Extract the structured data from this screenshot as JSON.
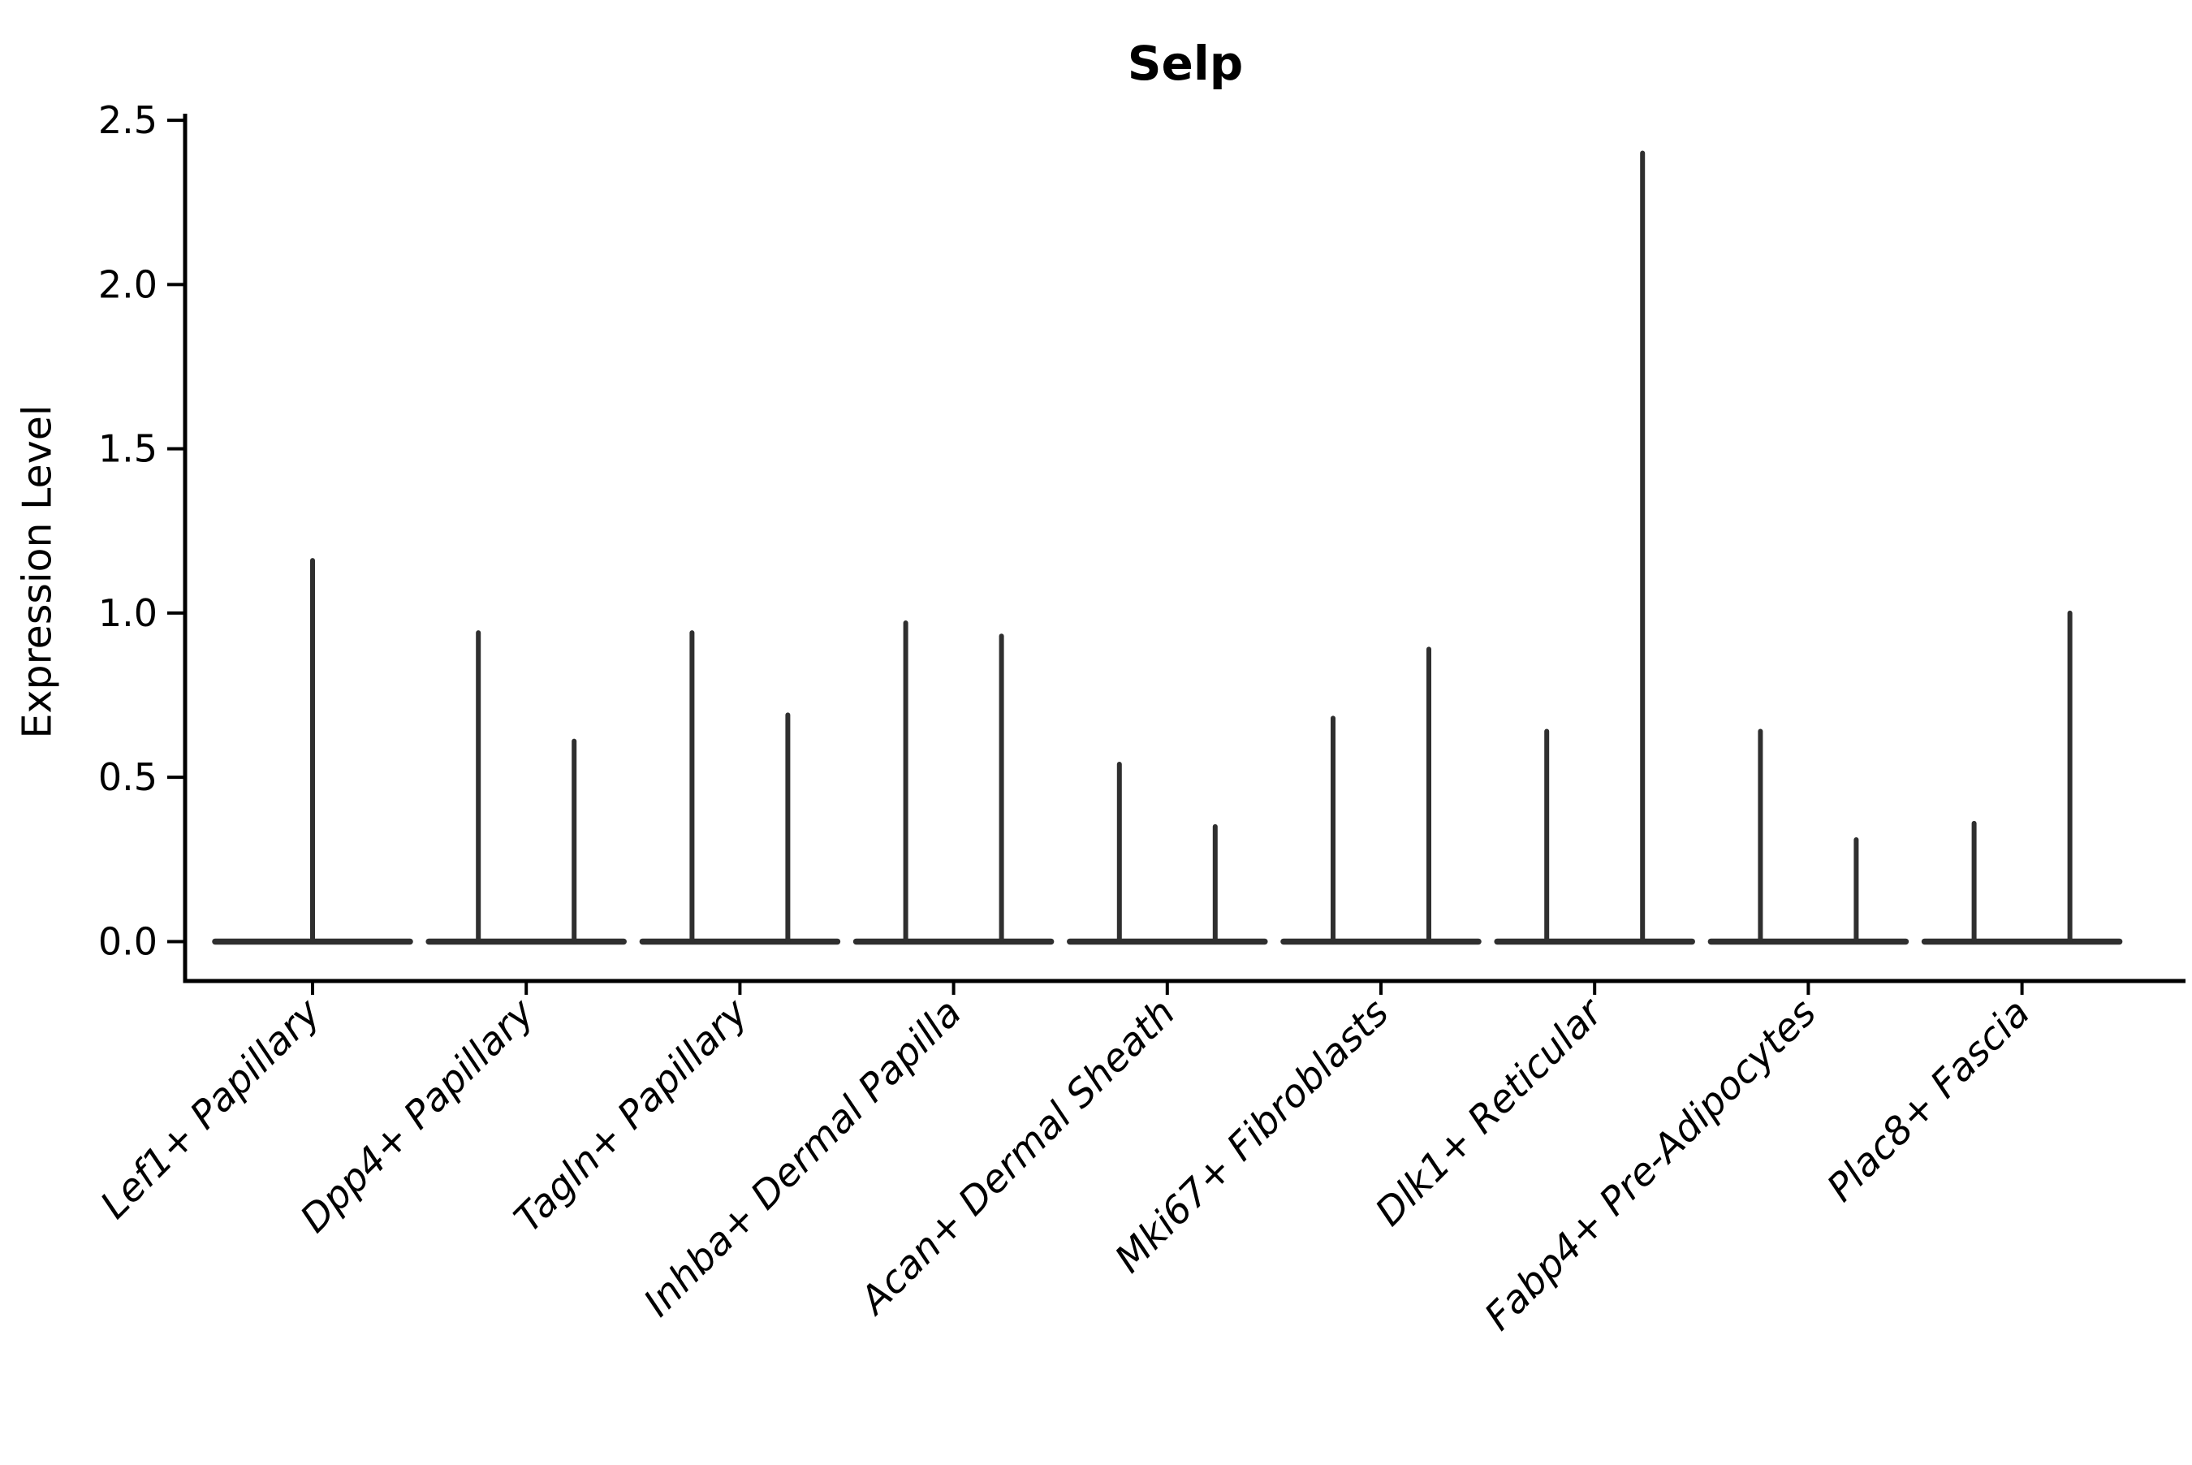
{
  "chart_data": {
    "type": "violin",
    "title": "Selp",
    "xlabel": "",
    "ylabel": "Expression Level",
    "ylim": [
      -0.12,
      2.52
    ],
    "yticks": [
      0.0,
      0.5,
      1.0,
      1.5,
      2.0,
      2.5
    ],
    "ytick_labels": [
      "0.0",
      "0.5",
      "1.0",
      "1.5",
      "2.0",
      "2.5"
    ],
    "x_tick_rotation_deg": 45,
    "grid": false,
    "legend": "none",
    "categories": [
      "Lef1+ Papillary",
      "Dpp4+ Papillary",
      "Tagln+ Papillary",
      "Inhba+ Dermal Papilla",
      "Acan+ Dermal Sheath",
      "Mki67+ Fibroblasts",
      "Dlk1+ Reticular",
      "Fabp4+ Pre-Adipocytes",
      "Plac8+ Fascia"
    ],
    "violins": [
      {
        "category": "Lef1+ Papillary",
        "baseline_value": 0.0,
        "spikes": [
          {
            "position": "center",
            "max": 1.16
          }
        ]
      },
      {
        "category": "Dpp4+ Papillary",
        "baseline_value": 0.0,
        "spikes": [
          {
            "position": "left",
            "max": 0.94
          },
          {
            "position": "right",
            "max": 0.61
          }
        ]
      },
      {
        "category": "Tagln+ Papillary",
        "baseline_value": 0.0,
        "spikes": [
          {
            "position": "left",
            "max": 0.94
          },
          {
            "position": "right",
            "max": 0.69
          }
        ]
      },
      {
        "category": "Inhba+ Dermal Papilla",
        "baseline_value": 0.0,
        "spikes": [
          {
            "position": "left",
            "max": 0.97
          },
          {
            "position": "right",
            "max": 0.93
          }
        ]
      },
      {
        "category": "Acan+ Dermal Sheath",
        "baseline_value": 0.0,
        "spikes": [
          {
            "position": "left",
            "max": 0.54
          },
          {
            "position": "right",
            "max": 0.35
          }
        ]
      },
      {
        "category": "Mki67+ Fibroblasts",
        "baseline_value": 0.0,
        "spikes": [
          {
            "position": "left",
            "max": 0.68
          },
          {
            "position": "right",
            "max": 0.89
          }
        ]
      },
      {
        "category": "Dlk1+ Reticular",
        "baseline_value": 0.0,
        "spikes": [
          {
            "position": "left",
            "max": 0.64
          },
          {
            "position": "right",
            "max": 2.4
          }
        ]
      },
      {
        "category": "Fabp4+ Pre-Adipocytes",
        "baseline_value": 0.0,
        "spikes": [
          {
            "position": "left",
            "max": 0.64
          },
          {
            "position": "right",
            "max": 0.31
          }
        ]
      },
      {
        "category": "Plac8+ Fascia",
        "baseline_value": 0.0,
        "spikes": [
          {
            "position": "left",
            "max": 0.36
          },
          {
            "position": "right",
            "max": 1.0
          }
        ]
      }
    ],
    "colors": {
      "background": "#ffffff",
      "axis": "#000000",
      "text": "#000000",
      "violin_stroke": "#2f2f2f"
    }
  }
}
